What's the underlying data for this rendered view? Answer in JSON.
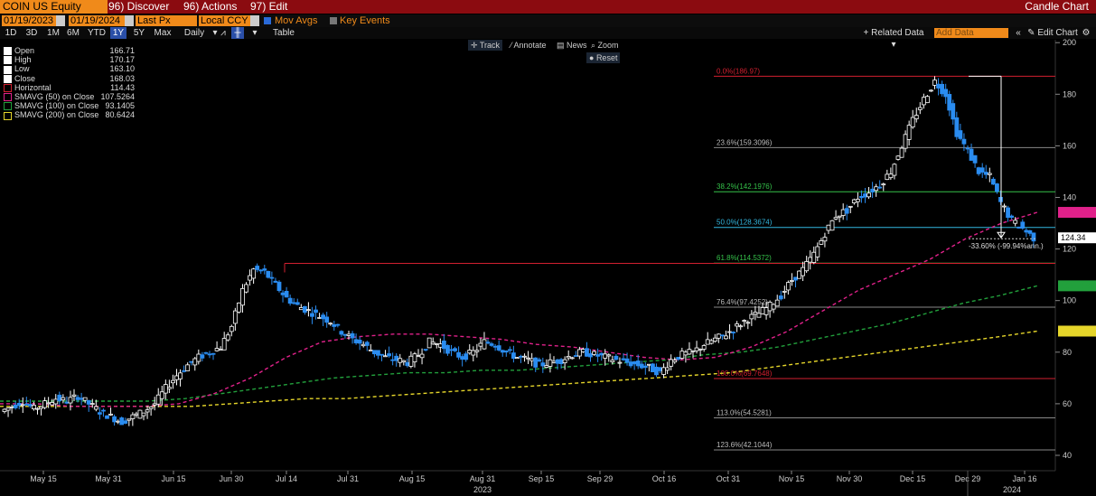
{
  "titlebar": {
    "ticker": "COIN US Equity",
    "menus": [
      "96) Discover",
      "96) Actions",
      "97) Edit"
    ],
    "right_title": "Candle Chart"
  },
  "controls": {
    "start_date": "01/19/2023",
    "end_date": "01/19/2024",
    "price_field": "Last Px",
    "currency": "Local CCY",
    "mov_avgs": "Mov Avgs",
    "key_events": "Key Events"
  },
  "ranges": [
    "1D",
    "3D",
    "1M",
    "6M",
    "YTD",
    "1Y",
    "5Y",
    "Max"
  ],
  "active_range": "1Y",
  "period": "Daily",
  "table_label": "Table",
  "related_data": "Related Data",
  "add_data_placeholder": "Add Data",
  "edit_chart": "Edit Chart",
  "tools": {
    "track": "Track",
    "annotate": "Annotate",
    "news": "News",
    "zoom": "Zoom",
    "reset": "Reset"
  },
  "legend": [
    {
      "label": "Open",
      "value": "166.71",
      "color": "#ffffff"
    },
    {
      "label": "High",
      "value": "170.17",
      "color": "#ffffff"
    },
    {
      "label": "Low",
      "value": "163.10",
      "color": "#ffffff"
    },
    {
      "label": "Close",
      "value": "168.03",
      "color": "#ffffff"
    },
    {
      "label": "Horizontal",
      "value": "114.43",
      "color": "#d21f2f"
    },
    {
      "label": "SMAVG (50)  on Close",
      "value": "107.5264",
      "color": "#e0218a"
    },
    {
      "label": "SMAVG (100)  on Close",
      "value": "93.1405",
      "color": "#22a03c"
    },
    {
      "label": "SMAVG (200)  on Close",
      "value": "80.6424",
      "color": "#e5d52a"
    }
  ],
  "chart_data": {
    "type": "candlestick",
    "ylim": [
      35,
      200
    ],
    "y_ticks": [
      40,
      60,
      80,
      100,
      120,
      140,
      160,
      180,
      200
    ],
    "x_labels": [
      "May 15",
      "May 31",
      "Jun 15",
      "Jun 30",
      "Jul 14",
      "Jul 31",
      "Aug 15",
      "Aug 31",
      "Sep 15",
      "Sep 29",
      "Oct 16",
      "Oct 31",
      "Nov 15",
      "Nov 30",
      "Dec 15",
      "Dec 29",
      "Jan 16"
    ],
    "year_labels": [
      "2023",
      "2024"
    ],
    "price_path": [
      57,
      59,
      61,
      58,
      60,
      62,
      61,
      63,
      60,
      57,
      55,
      53,
      55,
      57,
      60,
      66,
      71,
      75,
      78,
      80,
      82,
      90,
      104,
      112,
      111,
      106,
      101,
      98,
      96,
      94,
      92,
      88,
      85,
      83,
      80,
      78,
      77,
      76,
      79,
      84,
      83,
      80,
      78,
      80,
      84,
      83,
      80,
      78,
      77,
      75,
      76,
      77,
      79,
      80,
      79,
      78,
      77,
      76,
      75,
      74,
      72,
      77,
      79,
      80,
      83,
      85,
      87,
      90,
      93,
      95,
      98,
      102,
      108,
      112,
      118,
      126,
      133,
      135,
      140,
      142,
      145,
      150,
      160,
      170,
      178,
      185,
      180,
      165,
      158,
      150,
      148,
      138,
      131,
      128,
      124.34
    ],
    "fib_levels": [
      {
        "label": "0.0%(186.97)",
        "value": 186.97,
        "color": "#d21f2f"
      },
      {
        "label": "23.6%(159.3096)",
        "value": 159.3096,
        "color": "#bbbbbb"
      },
      {
        "label": "38.2%(142.1976)",
        "value": 142.1976,
        "color": "#35c14a"
      },
      {
        "label": "50.0%(128.3674)",
        "value": 128.3674,
        "color": "#33b7e0"
      },
      {
        "label": "61.8%(114.5372)",
        "value": 114.5372,
        "color": "#35c14a"
      },
      {
        "label": "76.4%(97.4252)",
        "value": 97.4252,
        "color": "#bbbbbb"
      },
      {
        "label": "100.0%(69.7648)",
        "value": 69.7648,
        "color": "#d21f2f"
      },
      {
        "label": "113.0%(54.5281)",
        "value": 54.5281,
        "color": "#bbbbbb"
      },
      {
        "label": "123.6%(42.1044)",
        "value": 42.1044,
        "color": "#bbbbbb"
      }
    ],
    "horizontal_line": 114.43,
    "smavg_50": [
      60,
      60,
      59,
      59,
      59,
      60,
      64,
      70,
      78,
      84,
      86,
      87,
      87,
      86,
      85,
      83,
      82,
      80,
      78,
      77,
      78,
      82,
      88,
      96,
      104,
      110,
      116,
      124,
      130,
      134.2084
    ],
    "smavg_100": [
      61,
      61,
      61,
      61,
      61,
      62,
      64,
      66,
      68,
      70,
      71,
      72,
      72,
      73,
      73,
      74,
      75,
      76,
      77,
      79,
      80,
      82,
      85,
      88,
      91,
      95,
      99,
      102,
      105.7193
    ],
    "smavg_200": [
      59,
      59,
      59,
      59,
      59,
      59,
      60,
      61,
      62,
      62,
      63,
      64,
      65,
      66,
      67,
      68,
      69,
      70,
      71,
      72,
      74,
      76,
      78,
      80,
      82,
      84,
      86,
      88.1668
    ],
    "price_labels": [
      {
        "value": "134.2084",
        "color": "#e0218a"
      },
      {
        "value": "124.34",
        "color": "#000000"
      },
      {
        "value": "105.7193",
        "color": "#22a03c"
      },
      {
        "value": "88.1668",
        "color": "#e5d52a"
      }
    ],
    "annotation": "-33.60% (-99.94%ann.)"
  }
}
